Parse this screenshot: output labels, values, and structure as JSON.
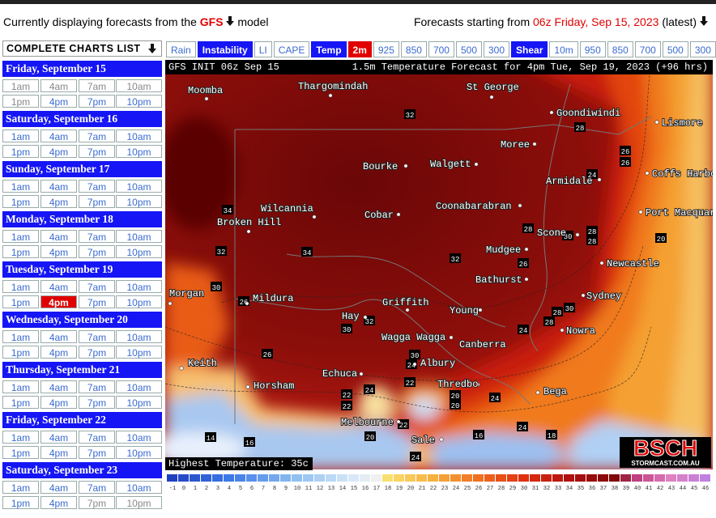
{
  "header": {
    "prefix": "Currently displaying forecasts from the",
    "model": "GFS",
    "suffix": "model",
    "start_prefix": "Forecasts starting from",
    "start": "06z Friday, Sep 15, 2023",
    "latest": "(latest)"
  },
  "sidebar": {
    "title": "COMPLETE CHARTS LIST",
    "selected": {
      "day": 4,
      "time": 5
    },
    "days": [
      {
        "label": "Friday, September 15",
        "times": [
          "1am",
          "4am",
          "7am",
          "10am",
          "1pm",
          "4pm",
          "7pm",
          "10pm"
        ],
        "inactive": [
          0,
          1,
          2,
          3,
          4
        ]
      },
      {
        "label": "Saturday, September 16",
        "times": [
          "1am",
          "4am",
          "7am",
          "10am",
          "1pm",
          "4pm",
          "7pm",
          "10pm"
        ],
        "inactive": []
      },
      {
        "label": "Sunday, September 17",
        "times": [
          "1am",
          "4am",
          "7am",
          "10am",
          "1pm",
          "4pm",
          "7pm",
          "10pm"
        ],
        "inactive": []
      },
      {
        "label": "Monday, September 18",
        "times": [
          "1am",
          "4am",
          "7am",
          "10am",
          "1pm",
          "4pm",
          "7pm",
          "10pm"
        ],
        "inactive": []
      },
      {
        "label": "Tuesday, September 19",
        "times": [
          "1am",
          "4am",
          "7am",
          "10am",
          "1pm",
          "4pm",
          "7pm",
          "10pm"
        ],
        "inactive": []
      },
      {
        "label": "Wednesday, September 20",
        "times": [
          "1am",
          "4am",
          "7am",
          "10am",
          "1pm",
          "4pm",
          "7pm",
          "10pm"
        ],
        "inactive": []
      },
      {
        "label": "Thursday, September 21",
        "times": [
          "1am",
          "4am",
          "7am",
          "10am",
          "1pm",
          "4pm",
          "7pm",
          "10pm"
        ],
        "inactive": []
      },
      {
        "label": "Friday, September 22",
        "times": [
          "1am",
          "4am",
          "7am",
          "10am",
          "1pm",
          "4pm",
          "7pm",
          "10pm"
        ],
        "inactive": []
      },
      {
        "label": "Saturday, September 23",
        "times": [
          "1am",
          "4am",
          "7am",
          "10am",
          "1pm",
          "4pm",
          "7pm",
          "10pm"
        ],
        "inactive": [
          6,
          7
        ]
      }
    ]
  },
  "toolbar": [
    {
      "label": "Rain",
      "style": "link"
    },
    {
      "label": "Instability",
      "style": "group"
    },
    {
      "label": "LI",
      "style": "link"
    },
    {
      "label": "CAPE",
      "style": "link"
    },
    {
      "label": "Temp",
      "style": "group"
    },
    {
      "label": "2m",
      "style": "selected"
    },
    {
      "label": "925",
      "style": "link"
    },
    {
      "label": "850",
      "style": "link"
    },
    {
      "label": "700",
      "style": "link"
    },
    {
      "label": "500",
      "style": "link"
    },
    {
      "label": "300",
      "style": "link"
    },
    {
      "label": "Shear",
      "style": "group"
    },
    {
      "label": "10m",
      "style": "link"
    },
    {
      "label": "950",
      "style": "link"
    },
    {
      "label": "850",
      "style": "link"
    },
    {
      "label": "700",
      "style": "link"
    },
    {
      "label": "500",
      "style": "link"
    },
    {
      "label": "300",
      "style": "link"
    }
  ],
  "map": {
    "init": "GFS INIT 06z Sep 15",
    "title": "1.5m Temperature Forecast for 4pm Tue, Sep 19, 2023 (+96 hrs)",
    "highest": "Highest Temperature: 35c",
    "logo": "BSCH",
    "logo_site": "STORMCAST.COM.AU",
    "cities": [
      "Moomba",
      "Thargomindah",
      "St George",
      "Goondiwindi",
      "Lismore",
      "Moree",
      "Bourke",
      "Walgett",
      "Coffs Harbour",
      "Armidale",
      "Wilcannia",
      "Cobar",
      "Coonabarabran",
      "Port Macquarie",
      "Broken Hill",
      "Scone",
      "Mudgee",
      "Newcastle",
      "Bathurst",
      "Sydney",
      "Morgan",
      "Mildura",
      "Griffith",
      "Hay",
      "Young",
      "Nowra",
      "Wagga Wagga",
      "Canberra",
      "Albury",
      "Echuca",
      "Keith",
      "Horsham",
      "Thredbo",
      "Bega",
      "Melbourne",
      "Sale"
    ],
    "contour_labels": [
      32,
      28,
      26,
      26,
      24,
      34,
      34,
      32,
      32,
      30,
      26,
      32,
      30,
      26,
      28,
      30,
      28,
      28,
      26,
      20,
      28,
      30,
      28,
      24,
      30,
      24,
      22,
      24,
      22,
      22,
      20,
      20,
      24,
      22,
      20,
      14,
      16,
      16,
      24,
      18,
      24
    ]
  },
  "scale": {
    "values": [
      -1,
      0,
      1,
      2,
      3,
      4,
      5,
      6,
      7,
      8,
      9,
      10,
      11,
      12,
      13,
      14,
      15,
      16,
      17,
      18,
      19,
      20,
      21,
      22,
      23,
      24,
      25,
      26,
      27,
      28,
      29,
      30,
      31,
      32,
      33,
      34,
      35,
      36,
      37,
      38,
      39,
      40,
      41,
      42,
      43,
      44,
      45,
      46
    ]
  }
}
